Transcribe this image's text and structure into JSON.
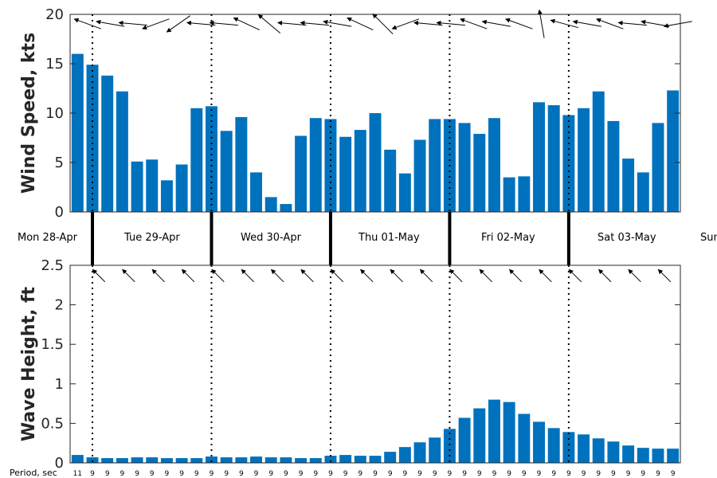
{
  "chart_data": [
    {
      "type": "bar",
      "ylabel": "Wind Speed, kts",
      "ylim": [
        0,
        20
      ],
      "yticks": [
        "0",
        "5",
        "10",
        "15",
        "20"
      ],
      "values": [
        16.0,
        14.9,
        13.8,
        12.2,
        5.1,
        5.3,
        3.2,
        4.8,
        10.5,
        10.7,
        8.2,
        9.6,
        4.0,
        1.5,
        0.8,
        7.7,
        9.5,
        9.4,
        7.6,
        8.3,
        10.0,
        6.3,
        3.9,
        7.3,
        9.4,
        9.4,
        9.0,
        7.9,
        9.5,
        3.5,
        3.6,
        11.1,
        10.8,
        9.8,
        10.5,
        12.2,
        9.2,
        5.4,
        4.0,
        9.0,
        12.3
      ],
      "direction_arrows_deg": [
        110,
        100,
        95,
        70,
        55,
        95,
        95,
        115,
        130,
        95,
        95,
        100,
        115,
        135,
        70,
        95,
        95,
        110,
        100,
        110,
        170,
        105,
        100,
        110,
        95,
        100,
        80
      ],
      "color": "#0072bd",
      "grid": false
    },
    {
      "type": "bar",
      "ylabel": "Wave Height, ft",
      "ylim": [
        0,
        2.5
      ],
      "yticks": [
        "0",
        "0.5",
        "1",
        "1.5",
        "2",
        "2.5"
      ],
      "values": [
        0.1,
        0.07,
        0.06,
        0.06,
        0.07,
        0.07,
        0.06,
        0.06,
        0.06,
        0.08,
        0.07,
        0.07,
        0.08,
        0.07,
        0.07,
        0.06,
        0.06,
        0.09,
        0.1,
        0.09,
        0.09,
        0.14,
        0.2,
        0.26,
        0.32,
        0.43,
        0.57,
        0.69,
        0.8,
        0.77,
        0.62,
        0.52,
        0.44,
        0.39,
        0.36,
        0.31,
        0.27,
        0.22,
        0.19,
        0.18,
        0.18
      ],
      "wave_direction_deg": 315,
      "color": "#0072bd",
      "grid": false
    }
  ],
  "days": [
    "Mon 28-Apr",
    "Tue 29-Apr",
    "Wed 30-Apr",
    "Thu 01-May",
    "Fri 02-May",
    "Sat 03-May",
    "Sun"
  ],
  "period_label": "Period, sec",
  "periods": [
    "11",
    "9",
    "9",
    "9",
    "9",
    "9",
    "9",
    "9",
    "9",
    "9",
    "9",
    "9",
    "9",
    "9",
    "9",
    "9",
    "9",
    "9",
    "9",
    "9",
    "9",
    "9",
    "9",
    "9",
    "9",
    "9",
    "9",
    "9",
    "9",
    "9",
    "9",
    "9",
    "9",
    "9",
    "9",
    "9",
    "9",
    "9",
    "9",
    "9",
    "9"
  ]
}
